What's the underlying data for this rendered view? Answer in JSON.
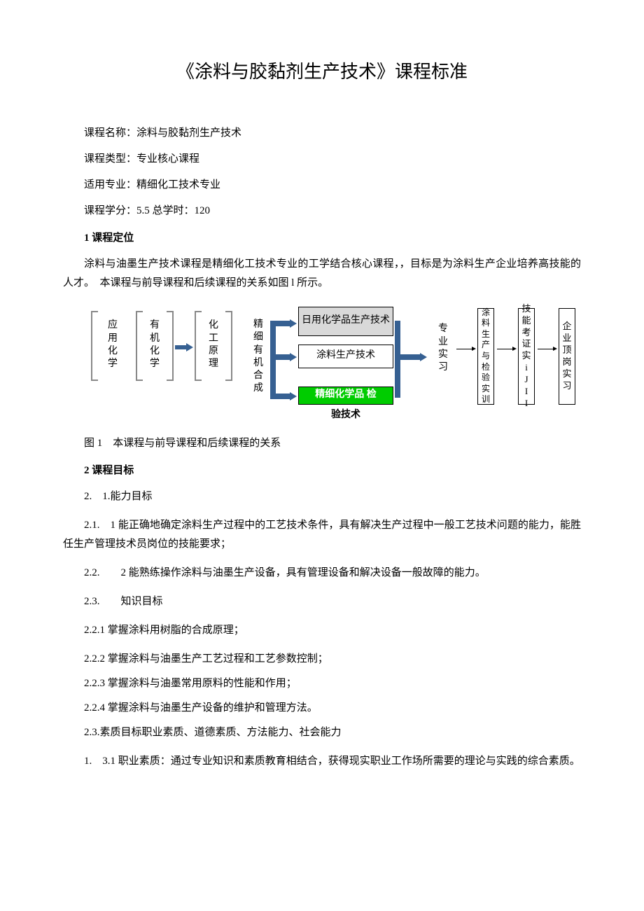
{
  "title": "《涂料与胶黏剂生产技术》课程标准",
  "meta": {
    "course_name": "课程名称：涂料与胶黏剂生产技术",
    "course_type": "课程类型：专业核心课程",
    "major": "适用专业：精细化工技术专业",
    "credit": "课程学分：5.5 总学时：120"
  },
  "s1": {
    "heading": "1 课程定位",
    "p1": "涂料与油墨生产技术课程是精细化工技术专业的工学结合核心课程，，目标是为涂料生产企业培养高技能的人才。　本课程与前导课程和后续课程的关系如图 l 所示。"
  },
  "diagram": {
    "box1": "应用化学",
    "box2": "有机化学",
    "box3": "化工原理",
    "box4": "精细有机合成",
    "c1": "日用化学品生产技术",
    "c2": "涂料生产技术",
    "c3": "精细化学品 检",
    "c3_below": "验技术",
    "box5": "专业实习",
    "box6": "涂料生产与检验实训",
    "box7": "技能考证实iJII",
    "box8": "企业顶岗实习",
    "colors": {
      "c1_bg": "#d9d9d9",
      "c2_bg": "#ffffff",
      "c3_bg": "#00cc00",
      "c3_text": "#ffffff",
      "arrow_color": "#366092"
    }
  },
  "fig_caption": "图 1　本课程与前导课程和后续课程的关系",
  "s2": {
    "heading": "2 课程目标",
    "s21_label": "2.　1.能力目标",
    "s211": "2.1.　1 能正确地确定涂料生产过程中的工艺技术条件，具有解决生产过程中一般工艺技术问题的能力，能胜任生产管理技术员岗位的技能要求；",
    "s212": "2.2.　　2 能熟练操作涂料与油墨生产设备，具有管理设备和解决设备一般故障的能力。",
    "s22_label": "2.3.　　知识目标",
    "s221": "2.2.1 掌握涂料用树脂的合成原理；",
    "s222": "2.2.2 掌握涂料与油墨生产工艺过程和工艺参数控制；",
    "s223": "2.2.3 掌握涂料与油墨常用原料的性能和作用；",
    "s224": "2.2.4 掌握涂料与油墨生产设备的维护和管理方法。",
    "s23": "2.3.素质目标职业素质、道德素质、方法能力、社会能力",
    "s231": "1.　3.1 职业素质：通过专业知识和素质教育相结合，获得现实职业工作场所需要的理论与实践的综合素质。"
  }
}
